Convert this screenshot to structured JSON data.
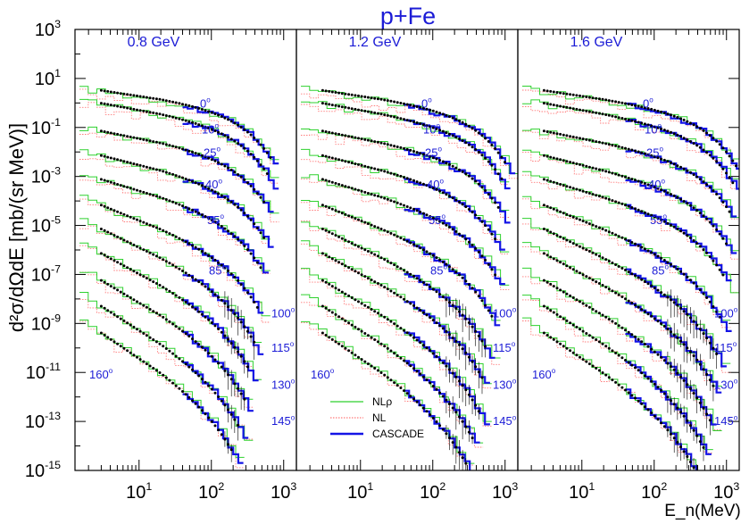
{
  "chart_data": {
    "type": "step-and-scatter",
    "title": "p+Fe",
    "xlabel": "E_n(MeV)",
    "ylabel": "d²σ/dΩdE [mb/(sr MeV)]",
    "xscale": "log",
    "yscale": "log",
    "xlim": [
      1.3,
      1500
    ],
    "ylim": [
      1e-15,
      1000.0
    ],
    "y_ticks": [
      {
        "value": 1000.0,
        "mantissa": "10",
        "exp": "3"
      },
      {
        "value": 10.0,
        "mantissa": "10",
        "exp": "1"
      },
      {
        "value": 0.1,
        "mantissa": "10",
        "exp": "-1"
      },
      {
        "value": 0.001,
        "mantissa": "10",
        "exp": "-3"
      },
      {
        "value": 1e-05,
        "mantissa": "10",
        "exp": "-5"
      },
      {
        "value": 1e-07,
        "mantissa": "10",
        "exp": "-7"
      },
      {
        "value": 1e-09,
        "mantissa": "10",
        "exp": "-9"
      },
      {
        "value": 1e-11,
        "mantissa": "10",
        "exp": "-11"
      },
      {
        "value": 1e-13,
        "mantissa": "10",
        "exp": "-13"
      },
      {
        "value": 1e-15,
        "mantissa": "10",
        "exp": "-15"
      }
    ],
    "x_ticks": [
      {
        "value": 10,
        "mantissa": "10",
        "exp": "1"
      },
      {
        "value": 100,
        "mantissa": "10",
        "exp": "2"
      },
      {
        "value": 1000,
        "mantissa": "10",
        "exp": "3"
      }
    ],
    "legend": {
      "placement": "bottom-left of middle panel",
      "entries": [
        {
          "label": "NLρ",
          "color": "#2fd12f",
          "style": "solid-thin"
        },
        {
          "label": "NL",
          "color": "#ff7b7b",
          "style": "dotted"
        },
        {
          "label": "CASCADE",
          "color": "#1414e6",
          "style": "solid-thick"
        }
      ]
    },
    "colors": {
      "nlrho": "#2fd12f",
      "nl": "#ff7b7b",
      "cascade": "#1414e6",
      "data": "#000000",
      "labels": "#1c1cd6"
    },
    "panels": [
      {
        "energy": "0.8 GeV",
        "max_energy_mev": 800
      },
      {
        "energy": "1.2 GeV",
        "max_energy_mev": 1200
      },
      {
        "energy": "1.6 GeV",
        "max_energy_mev": 1600
      }
    ],
    "angles": [
      {
        "label": "0",
        "deg": "o",
        "at20": 1.2,
        "slope": 0.45,
        "ref_value": 0.9
      },
      {
        "label": "10",
        "deg": "o",
        "at20": 0.3,
        "slope": 0.55,
        "ref_value": 0.08
      },
      {
        "label": "25",
        "deg": "o",
        "at20": 0.02,
        "slope": 0.6,
        "ref_value": 0.009
      },
      {
        "label": "40",
        "deg": "o",
        "at20": 0.0015,
        "slope": 0.75,
        "ref_value": 0.00045
      },
      {
        "label": "55",
        "deg": "o",
        "at20": 0.00012,
        "slope": 0.9,
        "ref_value": 1.6e-05
      },
      {
        "label": "85",
        "deg": "o",
        "at20": 6e-06,
        "slope": 1.2,
        "ref_value": 1.4e-07
      },
      {
        "label": "100",
        "deg": "o",
        "at20": 4e-07,
        "slope": 1.45,
        "ref_value": 2.5e-09
      },
      {
        "label": "115",
        "deg": "o",
        "at20": 3e-08,
        "slope": 1.6,
        "ref_value": 1e-10
      },
      {
        "label": "130",
        "deg": "o",
        "at20": 1.8e-09,
        "slope": 1.75,
        "ref_value": 3e-12
      },
      {
        "label": "145",
        "deg": "o",
        "at20": 1.2e-10,
        "slope": 1.9,
        "ref_value": 1e-13
      },
      {
        "label": "160",
        "deg": "o",
        "at20": 8e-12,
        "slope": 2.0,
        "ref_value": 8e-12
      }
    ]
  }
}
